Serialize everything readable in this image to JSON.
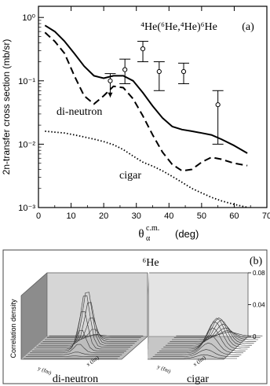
{
  "chart_data": [
    {
      "panel_label": "(a)",
      "type": "line",
      "title": "⁴He(⁶He,⁴He)⁶He",
      "xlabel": "θ",
      "xlabel_sub": "α",
      "xlabel_sup": "c.m.",
      "xlabel_unit": "(deg)",
      "ylabel": "2n-transfer cross section  (mb/sr)",
      "x_ticks": [
        "0",
        "10",
        "20",
        "30",
        "40",
        "50",
        "60",
        "70"
      ],
      "y_ticks": [
        "10⁻³",
        "10⁻²",
        "10⁻¹",
        "10⁰"
      ],
      "xlim": [
        0,
        70
      ],
      "ylim": [
        0.001,
        1.5
      ],
      "yscale": "log",
      "annotations": [
        "di-neutron",
        "cigar"
      ],
      "series": [
        {
          "style": "solid",
          "x": [
            2,
            5,
            8,
            11,
            14,
            17,
            20,
            23,
            26,
            29,
            32,
            35,
            38,
            41,
            44,
            47,
            50,
            53,
            56,
            60,
            64
          ],
          "y": [
            0.75,
            0.6,
            0.42,
            0.27,
            0.17,
            0.12,
            0.11,
            0.12,
            0.12,
            0.1,
            0.065,
            0.04,
            0.026,
            0.019,
            0.017,
            0.016,
            0.015,
            0.014,
            0.012,
            0.0095,
            0.0072
          ]
        },
        {
          "style": "dashed",
          "x": [
            2,
            5,
            8,
            11,
            14,
            17,
            20,
            23,
            26,
            29,
            32,
            35,
            38,
            41,
            44,
            47,
            50,
            53,
            56,
            60,
            64
          ],
          "y": [
            0.58,
            0.42,
            0.27,
            0.12,
            0.058,
            0.043,
            0.058,
            0.082,
            0.078,
            0.052,
            0.028,
            0.014,
            0.0075,
            0.0048,
            0.0038,
            0.004,
            0.0052,
            0.0062,
            0.0058,
            0.005,
            0.0046
          ]
        },
        {
          "style": "dotted",
          "x": [
            2,
            5,
            8,
            11,
            14,
            17,
            20,
            23,
            26,
            29,
            32,
            35,
            38,
            41,
            44,
            47,
            50,
            53,
            56,
            60,
            64
          ],
          "y": [
            0.016,
            0.0155,
            0.015,
            0.014,
            0.013,
            0.012,
            0.011,
            0.0098,
            0.0082,
            0.0065,
            0.0052,
            0.0045,
            0.0038,
            0.0031,
            0.0025,
            0.002,
            0.0017,
            0.00145,
            0.00128,
            0.00112,
            0.00101
          ]
        }
      ],
      "data_points": [
        {
          "x": 22,
          "y": 0.1,
          "ylow": 0.055,
          "yhigh": 0.13,
          "upper_limit_arrow": true
        },
        {
          "x": 26.5,
          "y": 0.15,
          "ylow": 0.09,
          "yhigh": 0.22
        },
        {
          "x": 32,
          "y": 0.32,
          "ylow": 0.2,
          "yhigh": 0.42
        },
        {
          "x": 37,
          "y": 0.14,
          "ylow": 0.07,
          "yhigh": 0.2
        },
        {
          "x": 44.5,
          "y": 0.14,
          "ylow": 0.09,
          "yhigh": 0.19
        },
        {
          "x": 55,
          "y": 0.042,
          "ylow": 0.01,
          "yhigh": 0.07
        }
      ]
    },
    {
      "panel_label": "(b)",
      "type": "surface",
      "title": "⁶He",
      "zlabel": "Correlation density",
      "z_ticks": [
        "0",
        "0.04",
        "0.08"
      ],
      "axis_labels": [
        "y (fm)",
        "x (fm)",
        "z (fm)"
      ],
      "subplots": [
        {
          "name": "di-neutron",
          "peak_height": 0.08,
          "peak_shape": "narrow"
        },
        {
          "name": "cigar",
          "peak_height": 0.04,
          "peak_shape": "broad"
        }
      ]
    }
  ]
}
